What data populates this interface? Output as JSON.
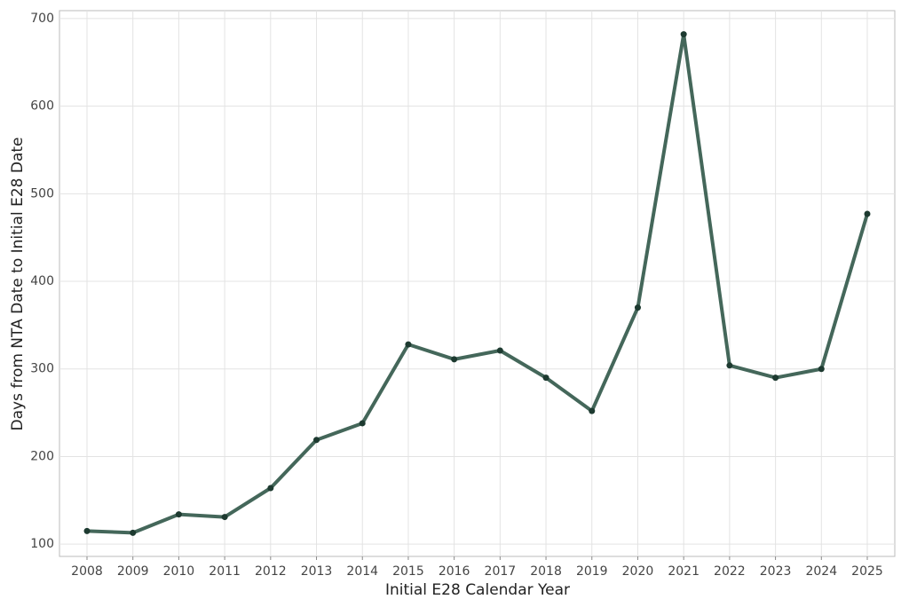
{
  "chart_data": {
    "type": "line",
    "x_label": "Initial E28 Calendar Year",
    "y_label": "Days from NTA Date to Initial E28 Date",
    "categories": [
      "2008",
      "2009",
      "2010",
      "2011",
      "2012",
      "2013",
      "2014",
      "2015",
      "2016",
      "2017",
      "2018",
      "2019",
      "2020",
      "2021",
      "2022",
      "2023",
      "2024",
      "2025"
    ],
    "series": [
      {
        "color": "#44675a",
        "values": [
          115,
          113,
          134,
          131,
          164,
          219,
          238,
          328,
          311,
          321,
          290,
          252,
          370,
          682,
          304,
          290,
          300,
          477
        ]
      }
    ],
    "ylim": [
      86,
      709
    ],
    "yticks": [
      100,
      200,
      300,
      400,
      500,
      600,
      700
    ],
    "grid": true
  }
}
